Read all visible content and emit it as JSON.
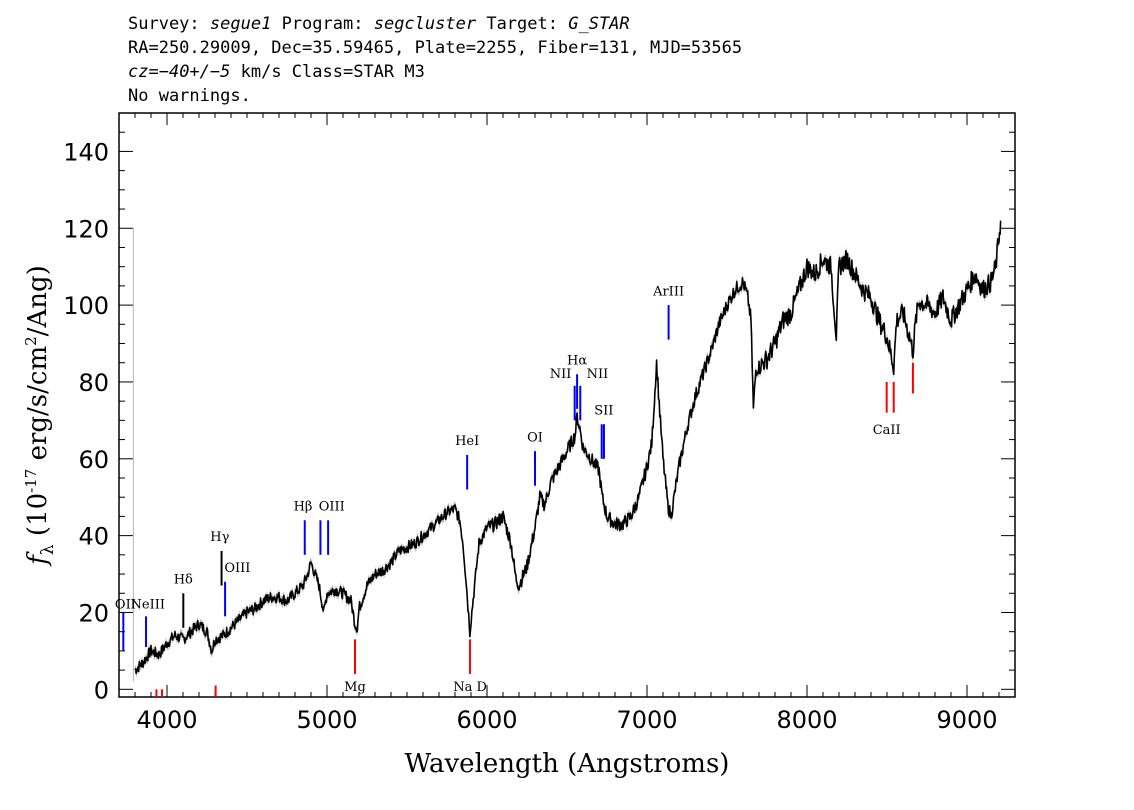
{
  "header": {
    "survey_label": "Survey:",
    "survey": "segue1",
    "program_label": "Program:",
    "program": "segcluster",
    "target_label": "Target:",
    "target": "G_STAR",
    "line2": "RA=250.29009, Dec=35.59465, Plate=2255, Fiber=131, MJD=53565",
    "cz_label": "cz=",
    "cz_value": "−40+/−5",
    "cz_rest": " km/s Class=STAR M3",
    "line4": "No warnings."
  },
  "colors": {
    "spectrum": "#000000",
    "error_band": "#b8b8b8",
    "emission": "#0000ff",
    "absorption": "#ff0000"
  },
  "chart_data": {
    "type": "line",
    "title": "",
    "xlabel": "Wavelength (Angstroms)",
    "ylabel": "f_λ (10^-17 erg/s/cm^2/Ang)",
    "xlim": [
      3700,
      9300
    ],
    "ylim": [
      -2,
      150
    ],
    "x_ticks": [
      4000,
      5000,
      6000,
      7000,
      8000,
      9000
    ],
    "y_ticks": [
      0,
      20,
      40,
      60,
      80,
      100,
      120,
      140
    ],
    "grid": false,
    "series": [
      {
        "x": [
          3800,
          3850,
          3900,
          3950,
          4000,
          4050,
          4100,
          4150,
          4200,
          4250,
          4280,
          4300,
          4350,
          4400,
          4450,
          4500,
          4550,
          4600,
          4650,
          4700,
          4750,
          4800,
          4850,
          4880,
          4900,
          4950,
          4980,
          5000,
          5050,
          5100,
          5150,
          5175,
          5190,
          5200,
          5250,
          5300,
          5350,
          5400,
          5450,
          5500,
          5550,
          5600,
          5650,
          5700,
          5750,
          5800,
          5830,
          5850,
          5870,
          5893,
          5910,
          5930,
          5950,
          6000,
          6050,
          6100,
          6150,
          6180,
          6200,
          6250,
          6300,
          6330,
          6360,
          6400,
          6450,
          6500,
          6550,
          6563,
          6580,
          6600,
          6650,
          6700,
          6720,
          6750,
          6800,
          6850,
          6900,
          6950,
          7000,
          7030,
          7050,
          7060,
          7080,
          7100,
          7130,
          7150,
          7200,
          7250,
          7300,
          7350,
          7400,
          7450,
          7500,
          7550,
          7600,
          7630,
          7650,
          7665,
          7680,
          7700,
          7750,
          7800,
          7850,
          7900,
          7950,
          8000,
          8050,
          8100,
          8150,
          8183,
          8200,
          8250,
          8300,
          8350,
          8400,
          8450,
          8498,
          8520,
          8542,
          8560,
          8600,
          8640,
          8662,
          8680,
          8700,
          8750,
          8800,
          8850,
          8900,
          8950,
          9000,
          9050,
          9100,
          9150,
          9180,
          9200,
          9210
        ],
        "y": [
          5,
          7,
          10,
          9,
          12,
          14,
          13,
          15,
          17,
          15,
          10,
          13,
          14,
          16,
          18,
          20,
          21,
          23,
          24,
          24,
          23,
          25,
          27,
          30,
          33,
          27,
          20,
          25,
          26,
          25,
          23,
          17,
          16,
          21,
          27,
          30,
          31,
          33,
          36,
          37,
          38,
          40,
          42,
          44,
          46,
          47,
          44,
          38,
          28,
          15,
          22,
          30,
          38,
          42,
          43,
          45,
          38,
          29,
          27,
          32,
          42,
          50,
          48,
          54,
          58,
          62,
          66,
          71,
          68,
          63,
          60,
          57,
          50,
          45,
          43,
          43,
          45,
          50,
          58,
          64,
          78,
          85,
          72,
          60,
          48,
          45,
          58,
          68,
          76,
          82,
          88,
          95,
          100,
          104,
          106,
          102,
          96,
          73,
          83,
          84,
          86,
          90,
          96,
          98,
          104,
          110,
          108,
          112,
          110,
          92,
          110,
          112,
          108,
          104,
          102,
          96,
          92,
          88,
          84,
          96,
          98,
          92,
          88,
          96,
          101,
          100,
          98,
          102,
          96,
          100,
          104,
          108,
          104,
          106,
          110,
          118,
          122
        ]
      }
    ],
    "emission_lines": [
      {
        "label": "OII",
        "x": 3727,
        "top": 20,
        "bottom": 10
      },
      {
        "label": "NeIII",
        "x": 3869,
        "top": 19,
        "bottom": 11
      },
      {
        "label": "Hδ",
        "x": 4102,
        "top": 25,
        "bottom": 16
      },
      {
        "label": "Hγ",
        "x": 4341,
        "top": 36,
        "bottom": 27
      },
      {
        "label": "OIII",
        "x": 4363,
        "top": 28,
        "bottom": 19
      },
      {
        "label": "Hβ",
        "x": 4861,
        "top": 44,
        "bottom": 35
      },
      {
        "label": "OIII",
        "x": 4959,
        "top": 44,
        "bottom": 35
      },
      {
        "label": "OIII",
        "x": 5007,
        "top": 44,
        "bottom": 35
      },
      {
        "label": "HeI",
        "x": 5876,
        "top": 61,
        "bottom": 52
      },
      {
        "label": "OI",
        "x": 6300,
        "top": 62,
        "bottom": 53
      },
      {
        "label": "NII",
        "x": 6548,
        "top": 79,
        "bottom": 70
      },
      {
        "label": "Hα",
        "x": 6563,
        "top": 82,
        "bottom": 73
      },
      {
        "label": "NII",
        "x": 6583,
        "top": 79,
        "bottom": 70
      },
      {
        "label": "SII",
        "x": 6717,
        "top": 69,
        "bottom": 60
      },
      {
        "label": "SII",
        "x": 6731,
        "top": 69,
        "bottom": 60
      },
      {
        "label": "ArIII",
        "x": 7135,
        "top": 100,
        "bottom": 91
      }
    ],
    "absorption_lines": [
      {
        "label": "",
        "x": 3934,
        "top": 0,
        "bottom": -4
      },
      {
        "label": "",
        "x": 3969,
        "top": 0,
        "bottom": -4
      },
      {
        "label": "",
        "x": 4304,
        "top": 1,
        "bottom": -4
      },
      {
        "label": "Mg",
        "x": 5175,
        "top": 13,
        "bottom": 4
      },
      {
        "label": "Na D",
        "x": 5894,
        "top": 13,
        "bottom": 4
      },
      {
        "label": "CaII",
        "x": 8498,
        "top": 80,
        "bottom": 72
      },
      {
        "label": "",
        "x": 8542,
        "top": 80,
        "bottom": 72
      },
      {
        "label": "",
        "x": 8662,
        "top": 85,
        "bottom": 77
      }
    ]
  }
}
